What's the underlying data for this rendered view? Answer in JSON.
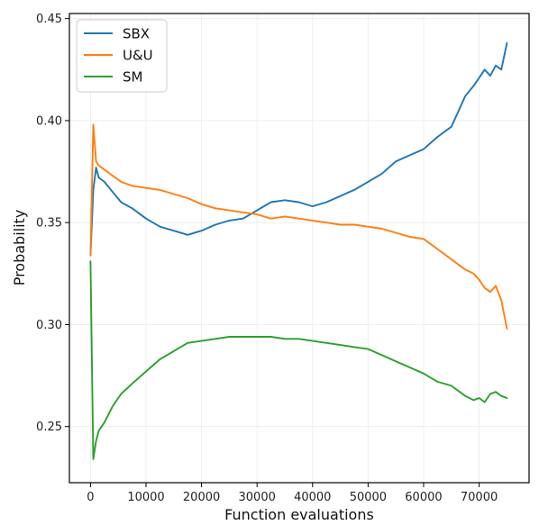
{
  "chart_data": {
    "type": "line",
    "title": "",
    "xlabel": "Function evaluations",
    "ylabel": "Probability",
    "xlim": [
      -3800,
      79000
    ],
    "ylim": [
      0.2225,
      0.4525
    ],
    "x_ticks": [
      0,
      10000,
      20000,
      30000,
      40000,
      50000,
      60000,
      70000
    ],
    "x_tick_labels": [
      "0",
      "10000",
      "20000",
      "30000",
      "40000",
      "50000",
      "60000",
      "70000"
    ],
    "y_ticks": [
      0.25,
      0.3,
      0.35,
      0.4,
      0.45
    ],
    "y_tick_labels": [
      "0.25",
      "0.30",
      "0.35",
      "0.40",
      "0.45"
    ],
    "grid": true,
    "legend": "top-left",
    "x": [
      0,
      500,
      1000,
      1500,
      2500,
      4000,
      5500,
      7500,
      10000,
      12500,
      15000,
      17500,
      20000,
      22500,
      25000,
      27500,
      30000,
      32500,
      35000,
      37500,
      40000,
      42500,
      45000,
      47500,
      50000,
      52500,
      55000,
      57500,
      60000,
      62500,
      65000,
      67500,
      69000,
      70000,
      71000,
      72000,
      73000,
      74000,
      75000
    ],
    "series": [
      {
        "name": "SBX",
        "color": "#1f77b4",
        "values": [
          0.334,
          0.366,
          0.377,
          0.372,
          0.37,
          0.365,
          0.36,
          0.357,
          0.352,
          0.348,
          0.346,
          0.344,
          0.346,
          0.349,
          0.351,
          0.352,
          0.356,
          0.36,
          0.361,
          0.36,
          0.358,
          0.36,
          0.363,
          0.366,
          0.37,
          0.374,
          0.38,
          0.383,
          0.386,
          0.392,
          0.397,
          0.412,
          0.417,
          0.421,
          0.425,
          0.422,
          0.427,
          0.425,
          0.438
        ]
      },
      {
        "name": "U&U",
        "color": "#ff7f0e",
        "values": [
          0.334,
          0.398,
          0.38,
          0.378,
          0.376,
          0.373,
          0.37,
          0.368,
          0.367,
          0.366,
          0.364,
          0.362,
          0.359,
          0.357,
          0.356,
          0.355,
          0.354,
          0.352,
          0.353,
          0.352,
          0.351,
          0.35,
          0.349,
          0.349,
          0.348,
          0.347,
          0.345,
          0.343,
          0.342,
          0.337,
          0.332,
          0.327,
          0.325,
          0.322,
          0.318,
          0.316,
          0.319,
          0.312,
          0.298
        ]
      },
      {
        "name": "SM",
        "color": "#2ca02c",
        "values": [
          0.331,
          0.234,
          0.243,
          0.248,
          0.252,
          0.26,
          0.266,
          0.271,
          0.277,
          0.283,
          0.287,
          0.291,
          0.292,
          0.293,
          0.294,
          0.294,
          0.294,
          0.294,
          0.293,
          0.293,
          0.292,
          0.291,
          0.29,
          0.289,
          0.288,
          0.285,
          0.282,
          0.279,
          0.276,
          0.272,
          0.27,
          0.265,
          0.263,
          0.264,
          0.262,
          0.266,
          0.267,
          0.265,
          0.264
        ]
      }
    ]
  }
}
